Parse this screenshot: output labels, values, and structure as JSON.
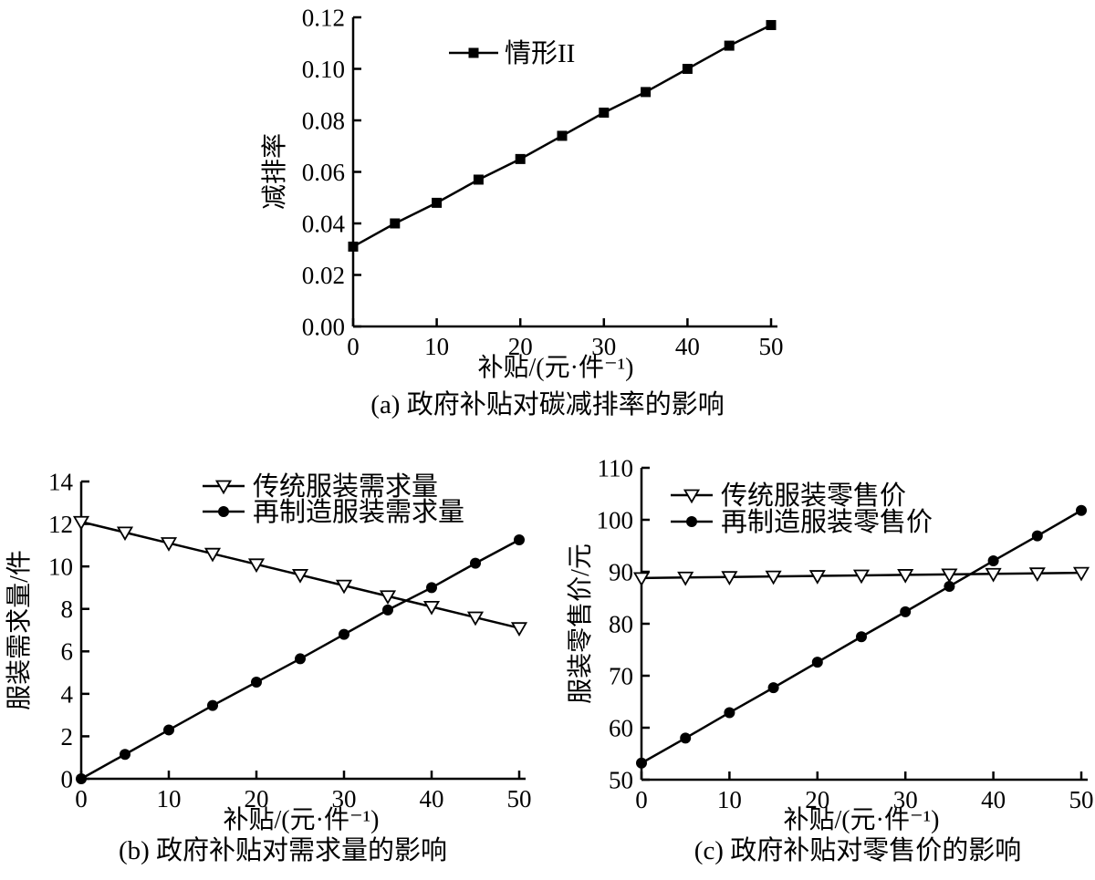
{
  "page": {
    "background": "#ffffff",
    "ink": "#000000"
  },
  "chart_data": [
    {
      "id": "a",
      "type": "line",
      "caption": "(a) 政府补贴对碳减排率的影响",
      "xlabel": "补贴/(元·件⁻¹)",
      "ylabel": "减排率",
      "xlim": [
        0,
        50
      ],
      "ylim": [
        0,
        0.12
      ],
      "grid": false,
      "legend_position": "top-center-inside",
      "xticks": {
        "values": [
          0,
          10,
          20,
          30,
          40,
          50
        ],
        "labels": [
          "0",
          "10",
          "20",
          "30",
          "40",
          "50"
        ]
      },
      "yticks": {
        "values": [
          0,
          0.02,
          0.04,
          0.06,
          0.08,
          0.1,
          0.12
        ],
        "labels": [
          "0.00",
          "0.02",
          "0.04",
          "0.06",
          "0.08",
          "0.10",
          "0.12"
        ]
      },
      "x": [
        0,
        5,
        10,
        15,
        20,
        25,
        30,
        35,
        40,
        45,
        50
      ],
      "series": [
        {
          "name": "情形II",
          "marker": "square-filled",
          "color": "#000000",
          "values": [
            0.031,
            0.04,
            0.048,
            0.057,
            0.065,
            0.074,
            0.083,
            0.091,
            0.1,
            0.109,
            0.117
          ]
        }
      ]
    },
    {
      "id": "b",
      "type": "line",
      "caption": "(b) 政府补贴对需求量的影响",
      "xlabel": "补贴/(元·件⁻¹)",
      "ylabel": "服装需求量/件",
      "xlim": [
        0,
        50
      ],
      "ylim": [
        0,
        14
      ],
      "grid": false,
      "legend_position": "top-center-inside",
      "xticks": {
        "values": [
          0,
          10,
          20,
          30,
          40,
          50
        ],
        "labels": [
          "0",
          "10",
          "20",
          "30",
          "40",
          "50"
        ]
      },
      "yticks": {
        "values": [
          0,
          2,
          4,
          6,
          8,
          10,
          12,
          14
        ],
        "labels": [
          "0",
          "2",
          "4",
          "6",
          "8",
          "10",
          "12",
          "14"
        ]
      },
      "x": [
        0,
        5,
        10,
        15,
        20,
        25,
        30,
        35,
        40,
        45,
        50
      ],
      "series": [
        {
          "name": "传统服装需求量",
          "marker": "triangle-down-open",
          "color": "#000000",
          "values": [
            12.1,
            11.6,
            11.1,
            10.6,
            10.1,
            9.6,
            9.1,
            8.6,
            8.1,
            7.6,
            7.1
          ]
        },
        {
          "name": "再制造服装需求量",
          "marker": "circle-filled",
          "color": "#000000",
          "values": [
            0.0,
            1.15,
            2.3,
            3.45,
            4.55,
            5.65,
            6.8,
            7.95,
            9.0,
            10.15,
            11.25
          ]
        }
      ]
    },
    {
      "id": "c",
      "type": "line",
      "caption": "(c) 政府补贴对零售价的影响",
      "xlabel": "补贴/(元·件⁻¹)",
      "ylabel": "服装零售价/元",
      "xlim": [
        0,
        50
      ],
      "ylim": [
        50,
        110
      ],
      "grid": false,
      "legend_position": "top-center-inside",
      "xticks": {
        "values": [
          0,
          10,
          20,
          30,
          40,
          50
        ],
        "labels": [
          "0",
          "10",
          "20",
          "30",
          "40",
          "50"
        ]
      },
      "yticks": {
        "values": [
          50,
          60,
          70,
          80,
          90,
          100,
          110
        ],
        "labels": [
          "50",
          "60",
          "70",
          "80",
          "90",
          "100",
          "110"
        ]
      },
      "x": [
        0,
        5,
        10,
        15,
        20,
        25,
        30,
        35,
        40,
        45,
        50
      ],
      "series": [
        {
          "name": "传统服装零售价",
          "marker": "triangle-down-open",
          "color": "#000000",
          "values": [
            88.8,
            88.9,
            89.0,
            89.1,
            89.2,
            89.3,
            89.4,
            89.5,
            89.6,
            89.7,
            89.8
          ]
        },
        {
          "name": "再制造服装零售价",
          "marker": "circle-filled",
          "color": "#000000",
          "values": [
            53.2,
            58.0,
            62.9,
            67.7,
            72.6,
            77.5,
            82.3,
            87.2,
            92.1,
            96.9,
            101.8
          ]
        }
      ]
    }
  ]
}
